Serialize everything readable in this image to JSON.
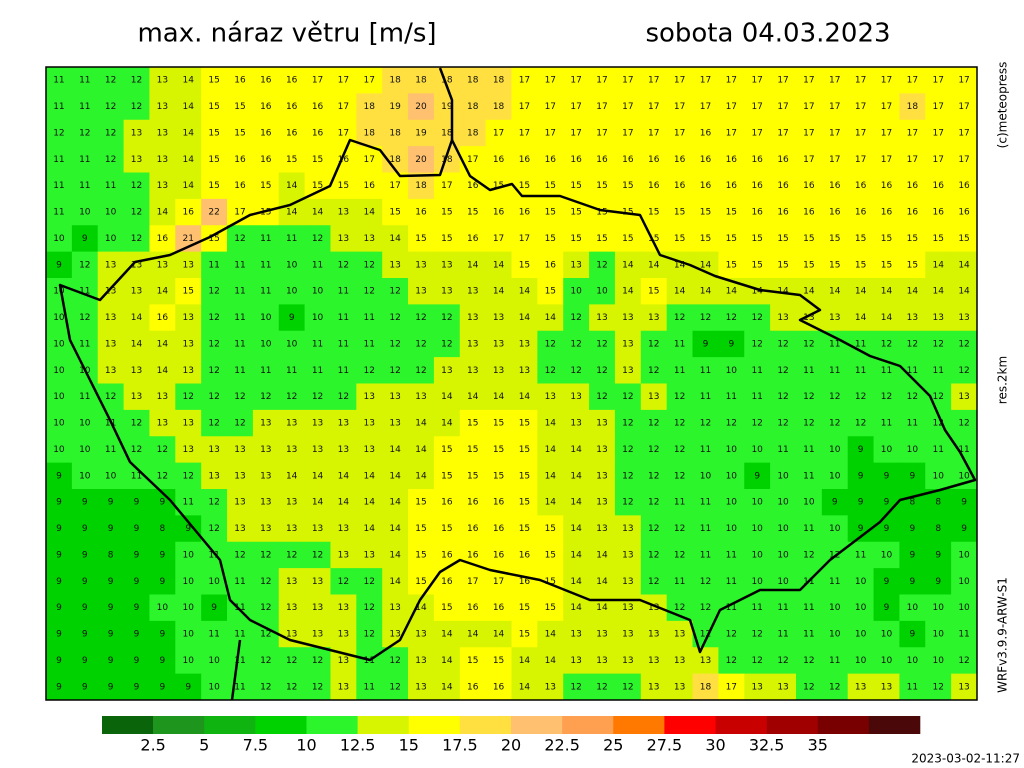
{
  "header": {
    "title": "max. náraz větru [m/s]",
    "date": "sobota 04.03.2023"
  },
  "side": {
    "copyright": "(c)meteopress",
    "resolution": "res.2km",
    "model": "WRFv3.9.9-ARW-S1"
  },
  "footer": {
    "timestamp": "2023-03-02-11:27"
  },
  "colorbar": {
    "colors": [
      "#0a640a",
      "#1e961e",
      "#10b410",
      "#00d200",
      "#2cf52c",
      "#d7f500",
      "#ffff00",
      "#ffe040",
      "#ffc070",
      "#ffa050",
      "#ff7800",
      "#ff0000",
      "#c80000",
      "#a00000",
      "#780000",
      "#4a0808"
    ],
    "ticks": [
      2.5,
      5,
      7.5,
      10,
      12.5,
      15,
      17.5,
      20,
      22.5,
      25,
      27.5,
      30,
      32.5,
      35
    ]
  },
  "grid": [
    [
      11,
      11,
      12,
      12,
      13,
      14,
      15,
      16,
      16,
      16,
      17,
      17,
      17,
      18,
      18,
      18,
      18,
      18,
      17,
      17,
      17,
      17,
      17,
      17,
      17,
      17,
      17,
      17,
      17,
      17,
      17,
      17,
      17,
      17,
      17,
      17
    ],
    [
      11,
      11,
      12,
      12,
      13,
      14,
      15,
      15,
      16,
      16,
      16,
      17,
      18,
      19,
      20,
      19,
      18,
      18,
      17,
      17,
      17,
      17,
      17,
      17,
      17,
      17,
      17,
      17,
      17,
      17,
      17,
      17,
      17,
      18,
      17,
      17
    ],
    [
      12,
      12,
      12,
      13,
      13,
      14,
      15,
      15,
      16,
      16,
      16,
      17,
      18,
      18,
      19,
      18,
      18,
      17,
      17,
      17,
      17,
      17,
      17,
      17,
      17,
      16,
      17,
      17,
      17,
      17,
      17,
      17,
      17,
      17,
      17,
      17
    ],
    [
      11,
      11,
      12,
      13,
      13,
      14,
      15,
      16,
      16,
      15,
      15,
      16,
      17,
      18,
      20,
      18,
      17,
      16,
      16,
      16,
      16,
      16,
      16,
      16,
      16,
      16,
      16,
      16,
      16,
      17,
      17,
      17,
      17,
      17,
      17,
      17
    ],
    [
      11,
      11,
      11,
      12,
      13,
      14,
      15,
      16,
      15,
      14,
      15,
      15,
      16,
      17,
      18,
      17,
      16,
      15,
      15,
      15,
      15,
      15,
      15,
      16,
      16,
      16,
      16,
      16,
      16,
      16,
      16,
      16,
      16,
      16,
      16,
      16
    ],
    [
      11,
      10,
      10,
      12,
      14,
      16,
      22,
      17,
      15,
      14,
      14,
      13,
      14,
      15,
      16,
      15,
      15,
      16,
      16,
      15,
      15,
      15,
      15,
      15,
      15,
      15,
      15,
      16,
      16,
      16,
      16,
      16,
      16,
      16,
      16,
      16
    ],
    [
      10,
      9,
      10,
      12,
      16,
      21,
      15,
      12,
      11,
      11,
      12,
      13,
      13,
      14,
      15,
      15,
      16,
      17,
      17,
      15,
      15,
      15,
      15,
      15,
      15,
      15,
      15,
      15,
      15,
      15,
      15,
      15,
      15,
      15,
      15,
      15
    ],
    [
      9,
      12,
      13,
      13,
      13,
      13,
      11,
      11,
      11,
      10,
      11,
      12,
      12,
      13,
      13,
      13,
      14,
      14,
      15,
      16,
      13,
      12,
      14,
      14,
      14,
      14,
      15,
      15,
      15,
      15,
      15,
      15,
      15,
      15,
      14,
      14
    ],
    [
      10,
      11,
      13,
      13,
      14,
      15,
      12,
      11,
      11,
      10,
      10,
      11,
      12,
      12,
      13,
      13,
      13,
      14,
      14,
      15,
      10,
      10,
      14,
      15,
      14,
      14,
      14,
      14,
      14,
      14,
      14,
      14,
      14,
      14,
      14,
      14
    ],
    [
      10,
      12,
      13,
      14,
      16,
      13,
      12,
      11,
      10,
      9,
      10,
      11,
      11,
      12,
      12,
      12,
      13,
      13,
      14,
      14,
      12,
      13,
      13,
      13,
      12,
      12,
      12,
      12,
      13,
      13,
      13,
      14,
      14,
      13,
      13,
      13
    ],
    [
      10,
      11,
      13,
      14,
      14,
      13,
      12,
      11,
      10,
      10,
      11,
      11,
      11,
      12,
      12,
      12,
      13,
      13,
      13,
      12,
      12,
      12,
      13,
      12,
      11,
      9,
      9,
      12,
      12,
      12,
      11,
      11,
      12,
      12,
      12,
      12
    ],
    [
      10,
      10,
      13,
      13,
      14,
      13,
      12,
      11,
      11,
      11,
      11,
      11,
      12,
      12,
      12,
      13,
      13,
      13,
      13,
      12,
      12,
      12,
      13,
      12,
      11,
      11,
      10,
      11,
      12,
      11,
      11,
      11,
      11,
      11,
      11,
      12
    ],
    [
      10,
      11,
      12,
      13,
      13,
      12,
      12,
      12,
      12,
      12,
      12,
      12,
      13,
      13,
      13,
      14,
      14,
      14,
      14,
      13,
      13,
      12,
      12,
      13,
      12,
      11,
      11,
      11,
      12,
      12,
      12,
      12,
      12,
      12,
      12,
      13
    ],
    [
      10,
      10,
      11,
      12,
      13,
      13,
      12,
      12,
      13,
      13,
      13,
      13,
      13,
      13,
      14,
      14,
      15,
      15,
      15,
      14,
      13,
      13,
      12,
      12,
      12,
      12,
      12,
      12,
      12,
      12,
      12,
      12,
      11,
      11,
      12,
      12
    ],
    [
      10,
      10,
      11,
      12,
      12,
      13,
      13,
      13,
      13,
      13,
      13,
      13,
      13,
      14,
      14,
      15,
      15,
      15,
      15,
      14,
      14,
      13,
      12,
      12,
      12,
      11,
      10,
      10,
      11,
      11,
      10,
      9,
      10,
      10,
      11,
      11
    ],
    [
      9,
      10,
      10,
      11,
      12,
      12,
      13,
      13,
      13,
      14,
      14,
      14,
      14,
      14,
      14,
      15,
      15,
      15,
      15,
      14,
      14,
      13,
      12,
      12,
      12,
      10,
      10,
      9,
      10,
      11,
      10,
      9,
      9,
      9,
      10,
      10
    ],
    [
      9,
      9,
      9,
      9,
      9,
      11,
      12,
      13,
      13,
      13,
      14,
      14,
      14,
      14,
      15,
      16,
      16,
      16,
      15,
      14,
      14,
      13,
      12,
      12,
      11,
      11,
      10,
      10,
      10,
      10,
      9,
      9,
      9,
      8,
      8,
      9
    ],
    [
      9,
      9,
      9,
      9,
      8,
      9,
      12,
      13,
      13,
      13,
      13,
      13,
      14,
      14,
      15,
      15,
      16,
      16,
      15,
      15,
      14,
      13,
      13,
      12,
      12,
      11,
      10,
      10,
      10,
      11,
      10,
      9,
      9,
      9,
      8,
      9
    ],
    [
      9,
      9,
      8,
      9,
      9,
      10,
      11,
      12,
      12,
      12,
      12,
      13,
      13,
      14,
      15,
      16,
      16,
      16,
      16,
      15,
      14,
      14,
      13,
      12,
      12,
      11,
      11,
      10,
      10,
      12,
      12,
      11,
      10,
      9,
      9,
      10
    ],
    [
      9,
      9,
      9,
      9,
      9,
      10,
      10,
      11,
      12,
      13,
      13,
      12,
      12,
      14,
      15,
      16,
      17,
      17,
      16,
      15,
      14,
      14,
      13,
      12,
      11,
      12,
      11,
      10,
      10,
      11,
      11,
      10,
      9,
      9,
      9,
      10
    ],
    [
      9,
      9,
      9,
      9,
      10,
      10,
      9,
      11,
      12,
      13,
      13,
      13,
      12,
      13,
      14,
      15,
      16,
      16,
      15,
      15,
      14,
      14,
      13,
      13,
      12,
      12,
      11,
      11,
      11,
      11,
      10,
      10,
      9,
      10,
      10,
      10
    ],
    [
      9,
      9,
      9,
      9,
      9,
      10,
      11,
      11,
      12,
      13,
      13,
      13,
      12,
      13,
      13,
      14,
      14,
      14,
      15,
      14,
      13,
      13,
      13,
      13,
      13,
      12,
      12,
      12,
      11,
      11,
      10,
      10,
      10,
      9,
      10,
      11
    ],
    [
      9,
      9,
      9,
      9,
      9,
      10,
      10,
      11,
      12,
      12,
      12,
      13,
      11,
      12,
      13,
      14,
      15,
      15,
      14,
      14,
      13,
      13,
      13,
      13,
      13,
      13,
      12,
      12,
      12,
      12,
      11,
      10,
      10,
      10,
      10,
      12
    ],
    [
      9,
      9,
      9,
      9,
      9,
      9,
      10,
      11,
      12,
      12,
      12,
      13,
      11,
      12,
      13,
      14,
      16,
      16,
      14,
      13,
      12,
      12,
      12,
      13,
      13,
      18,
      17,
      13,
      13,
      12,
      12,
      13,
      13,
      11,
      12,
      13
    ]
  ]
}
